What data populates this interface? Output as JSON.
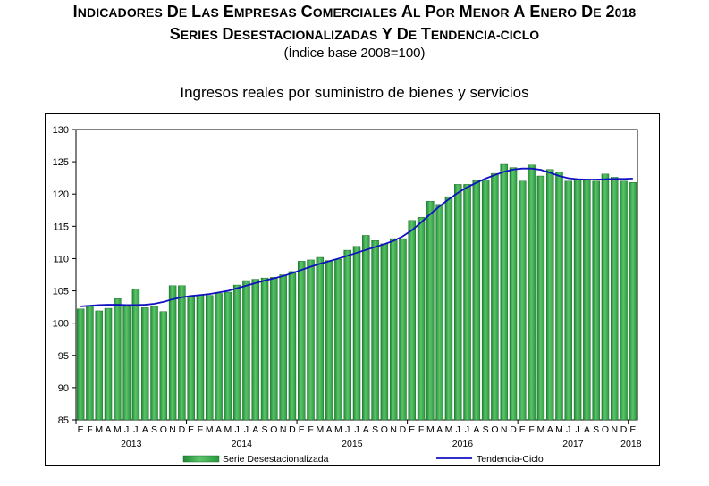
{
  "header": {
    "title_line1": "Indicadores de las Empresas Comerciales al por Menor a enero de 2018",
    "title_line2": "Series desestacionalizadas y de tendencia-ciclo",
    "subtitle": "(Índice base 2008=100)"
  },
  "chart_data": {
    "type": "bar",
    "title": "Ingresos reales por suministro de bienes y servicios",
    "xlabel": "",
    "ylabel": "",
    "ylim": [
      85,
      130
    ],
    "yticks": [
      85,
      90,
      95,
      100,
      105,
      110,
      115,
      120,
      125,
      130
    ],
    "month_letters": [
      "E",
      "F",
      "M",
      "A",
      "M",
      "J",
      "J",
      "A",
      "S",
      "O",
      "N",
      "D",
      "E",
      "F",
      "M",
      "A",
      "M",
      "J",
      "J",
      "A",
      "S",
      "O",
      "N",
      "D",
      "E",
      "F",
      "M",
      "A",
      "M",
      "J",
      "J",
      "A",
      "S",
      "O",
      "N",
      "D",
      "E",
      "F",
      "M",
      "A",
      "M",
      "J",
      "J",
      "A",
      "S",
      "O",
      "N",
      "D",
      "E",
      "F",
      "M",
      "A",
      "M",
      "J",
      "J",
      "A",
      "S",
      "O",
      "N",
      "D",
      "E"
    ],
    "year_labels": [
      "2013",
      "2014",
      "2015",
      "2016",
      "2017",
      "2018"
    ],
    "categories": [
      "2013-01",
      "2013-02",
      "2013-03",
      "2013-04",
      "2013-05",
      "2013-06",
      "2013-07",
      "2013-08",
      "2013-09",
      "2013-10",
      "2013-11",
      "2013-12",
      "2014-01",
      "2014-02",
      "2014-03",
      "2014-04",
      "2014-05",
      "2014-06",
      "2014-07",
      "2014-08",
      "2014-09",
      "2014-10",
      "2014-11",
      "2014-12",
      "2015-01",
      "2015-02",
      "2015-03",
      "2015-04",
      "2015-05",
      "2015-06",
      "2015-07",
      "2015-08",
      "2015-09",
      "2015-10",
      "2015-11",
      "2015-12",
      "2016-01",
      "2016-02",
      "2016-03",
      "2016-04",
      "2016-05",
      "2016-06",
      "2016-07",
      "2016-08",
      "2016-09",
      "2016-10",
      "2016-11",
      "2016-12",
      "2017-01",
      "2017-02",
      "2017-03",
      "2017-04",
      "2017-05",
      "2017-06",
      "2017-07",
      "2017-08",
      "2017-09",
      "2017-10",
      "2017-11",
      "2017-12",
      "2018-01"
    ],
    "series": [
      {
        "name": "Serie Desestacionalizada",
        "kind": "bar",
        "color": "#3aa84a",
        "values": [
          102.2,
          102.7,
          101.9,
          102.3,
          103.8,
          102.6,
          105.3,
          102.4,
          102.6,
          101.8,
          105.8,
          105.8,
          104.2,
          104.3,
          104.3,
          104.6,
          104.8,
          105.9,
          106.6,
          106.8,
          107.0,
          107.1,
          107.5,
          108.0,
          109.6,
          109.8,
          110.2,
          109.7,
          109.9,
          111.3,
          111.9,
          113.6,
          112.8,
          112.3,
          113.1,
          113.1,
          115.9,
          116.4,
          118.9,
          118.4,
          119.6,
          121.5,
          121.5,
          122.1,
          122.2,
          123.2,
          124.6,
          124.1,
          122.0,
          124.5,
          122.8,
          123.8,
          123.4,
          122.0,
          122.3,
          122.2,
          122.0,
          123.1,
          122.6,
          122.0,
          121.8
        ]
      },
      {
        "name": "Tendencia-Ciclo",
        "kind": "line",
        "color": "#1010c0",
        "values": [
          102.6,
          102.7,
          102.8,
          102.85,
          102.85,
          102.8,
          102.8,
          102.85,
          103.0,
          103.3,
          103.7,
          104.0,
          104.2,
          104.35,
          104.5,
          104.75,
          105.0,
          105.4,
          105.8,
          106.2,
          106.6,
          106.95,
          107.3,
          107.75,
          108.25,
          108.75,
          109.2,
          109.6,
          110.0,
          110.45,
          110.9,
          111.35,
          111.8,
          112.25,
          112.75,
          113.45,
          114.4,
          115.6,
          116.9,
          118.1,
          119.2,
          120.2,
          121.05,
          121.75,
          122.4,
          122.95,
          123.45,
          123.8,
          123.95,
          123.95,
          123.75,
          123.3,
          122.8,
          122.45,
          122.3,
          122.25,
          122.25,
          122.3,
          122.35,
          122.35,
          122.4
        ]
      }
    ],
    "legend": {
      "position": "bottom",
      "bar_label": "Serie Desestacionalizada",
      "line_label": "Tendencia-Ciclo"
    },
    "grid": {
      "horizontal": false,
      "vertical": false
    }
  }
}
